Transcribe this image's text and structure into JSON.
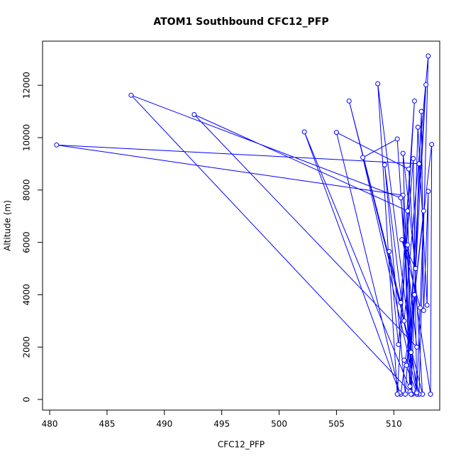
{
  "chart_data": {
    "type": "scatter",
    "lines": true,
    "title": "ATOM1 Southbound CFC12_PFP",
    "x_label": "CFC12_PFP",
    "y_label": "Altitude (m)",
    "color": "#0000ff",
    "x": [
      510.6,
      511.8,
      512.2,
      480.6,
      510.8,
      511.4,
      487.1,
      510.6,
      512.0,
      492.6,
      511.2,
      511.6,
      502.2,
      510.5,
      505.0,
      511.3,
      512.5,
      506.1,
      510.6,
      511.8,
      510.3,
      508.6,
      512.0,
      507.3,
      510.3,
      511.5,
      512.8,
      511.0,
      509.2,
      510.9,
      513.0,
      512.2,
      509.6,
      510.4,
      511.7,
      512.0,
      512.6,
      511.1,
      513.3,
      513.2,
      511.2,
      511.5,
      512.4,
      512.6,
      513.0,
      512.9,
      512.1,
      511.4,
      510.8,
      511.9,
      510.7,
      512.3,
      512.0,
      510.9
    ],
    "values": [
      200,
      4000,
      9000,
      9720,
      7800,
      300,
      11620,
      7700,
      2000,
      10880,
      7200,
      200,
      10220,
      250,
      10200,
      8800,
      200,
      11400,
      3700,
      11400,
      200,
      12060,
      300,
      9240,
      9950,
      1800,
      12020,
      200,
      8960,
      3000,
      13120,
      200,
      5650,
      2100,
      9200,
      200,
      7200,
      1300,
      9740,
      200,
      5900,
      200,
      11000,
      3400,
      7950,
      3600,
      10400,
      500,
      9400,
      5000,
      6100,
      3500,
      250,
      1500
    ],
    "xlim": [
      479.38,
      514.0
    ],
    "ylim": [
      -406,
      13685
    ],
    "xticks": [
      480,
      485,
      490,
      495,
      500,
      505,
      510
    ],
    "yticks": [
      0,
      2000,
      4000,
      6000,
      8000,
      10000,
      12000
    ]
  }
}
